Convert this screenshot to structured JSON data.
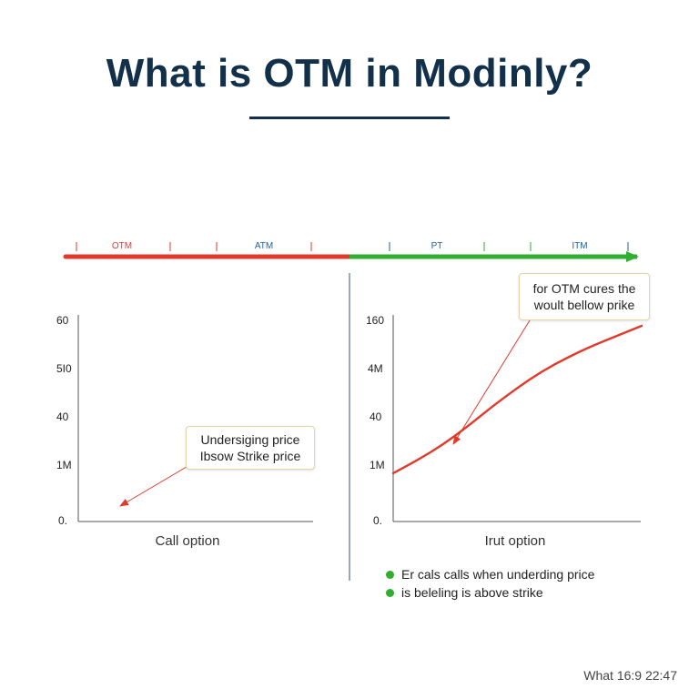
{
  "title": "What is OTM in Modinly?",
  "footer_text": "What 16:9 22:47",
  "colors": {
    "title": "#12304a",
    "otm_red": "#e2392b",
    "itm_green": "#2fae2f",
    "blue_label": "#1f5f9a",
    "curve_red": "#e2392b",
    "legend_green": "#2fae2f"
  },
  "moneyness_bar": {
    "labels": [
      "OTM",
      "ATM",
      "PT",
      "ITM"
    ]
  },
  "callouts": {
    "left": [
      "Undersiging price",
      "Ibsow Strike price"
    ],
    "right": [
      "for OTM cures the",
      "woult bellow prike"
    ]
  },
  "legend": [
    {
      "text": "Er cals calls when underding price",
      "color": "#2fae2f"
    },
    {
      "text": "is beleling is above strike",
      "color": "#2fae2f"
    }
  ],
  "chart_data": [
    {
      "type": "line",
      "title": "",
      "xlabel": "Call option",
      "ylabel": "",
      "y_tick_labels": [
        "60",
        "5I0",
        "40",
        "1M",
        "0."
      ],
      "series": [],
      "grid": false
    },
    {
      "type": "line",
      "title": "",
      "xlabel": "Irut option",
      "ylabel": "",
      "y_tick_labels": [
        "160",
        "4M",
        "40",
        "1M",
        "0."
      ],
      "series": [
        {
          "color": "#e2392b",
          "x": [
            0,
            0.1,
            0.2,
            0.3,
            0.4,
            0.5,
            0.6,
            0.7,
            0.8,
            0.9,
            1.0
          ],
          "y": [
            0.12,
            0.2,
            0.29,
            0.4,
            0.52,
            0.63,
            0.73,
            0.81,
            0.88,
            0.94,
            1.0
          ]
        }
      ],
      "grid": false
    }
  ]
}
